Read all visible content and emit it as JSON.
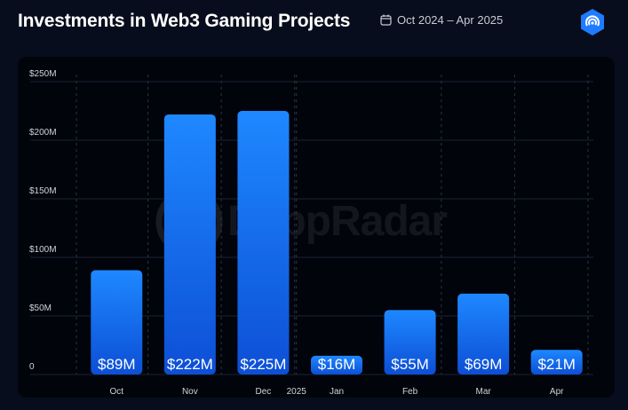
{
  "header": {
    "title": "Investments in Web3 Gaming Projects",
    "date_range": "Oct 2024 – Apr 2025"
  },
  "watermark": {
    "text": "DappRadar"
  },
  "colors": {
    "bar_top": "#1e88ff",
    "bar_bottom": "#0d4fd6",
    "badge": "#1f7bff"
  },
  "icons": {
    "calendar": "calendar-icon",
    "logo": "dappradar-logo-icon"
  },
  "chart_data": {
    "type": "bar",
    "title": "Investments in Web3 Gaming Projects",
    "categories": [
      "Oct",
      "Nov",
      "Dec",
      "Jan",
      "Feb",
      "Mar",
      "Apr"
    ],
    "values": [
      89,
      222,
      225,
      16,
      55,
      69,
      21
    ],
    "data_labels": [
      "$89M",
      "$222M",
      "$225M",
      "$16M",
      "$55M",
      "$69M",
      "$21M"
    ],
    "unit": "M USD",
    "ylim": [
      0,
      250
    ],
    "yticks": [
      0,
      50,
      100,
      150,
      200,
      250
    ],
    "ytick_labels": [
      "0",
      "$50M",
      "$100M",
      "$150M",
      "$200M",
      "$250M"
    ],
    "year_marker": {
      "label": "2025",
      "before_category": "Jan"
    },
    "grid": true,
    "legend": "none",
    "xlabel": "",
    "ylabel": ""
  }
}
